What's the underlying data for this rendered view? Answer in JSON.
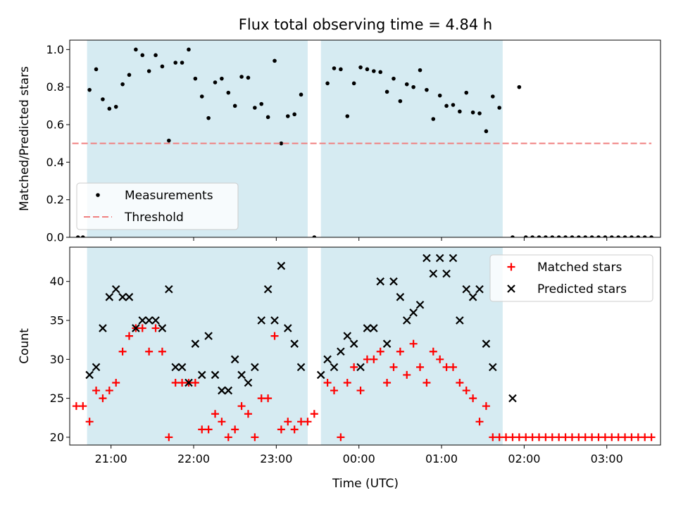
{
  "chart_data": {
    "title": "Flux total observing time = 4.84 h",
    "xlabel": "Time (UTC)",
    "x_unit": "hours UTC on a continuous time axis (values of 24 or more are after midnight)",
    "xlim": [
      20.5,
      27.65
    ],
    "x_ticks": [
      {
        "value": 21,
        "label": "21:00"
      },
      {
        "value": 22,
        "label": "22:00"
      },
      {
        "value": 23,
        "label": "23:00"
      },
      {
        "value": 24,
        "label": "00:00"
      },
      {
        "value": 25,
        "label": "01:00"
      },
      {
        "value": 26,
        "label": "02:00"
      },
      {
        "value": 27,
        "label": "03:00"
      }
    ],
    "colors": {
      "measurements": "#000000",
      "threshold": "#f08080",
      "matched": "#ff0000",
      "predicted": "#000000",
      "shade": "#add8e6"
    },
    "shaded_intervals": [
      [
        20.71,
        23.38
      ],
      [
        23.54,
        25.74
      ]
    ],
    "panels": [
      {
        "type": "scatter",
        "ylabel": "Matched/Predicted stars",
        "ylim": [
          0,
          1.05
        ],
        "y_ticks": [
          "0.0",
          "0.2",
          "0.4",
          "0.6",
          "0.8",
          "1.0"
        ],
        "grid": false,
        "legend_position": "bottom-left",
        "series": [
          {
            "name": "Measurements",
            "type": "scatter",
            "marker": "dot",
            "points": [
              [
                20.6,
                0
              ],
              [
                20.66,
                0
              ],
              [
                20.74,
                0.785
              ],
              [
                20.82,
                0.895
              ],
              [
                20.9,
                0.735
              ],
              [
                20.98,
                0.685
              ],
              [
                21.06,
                0.695
              ],
              [
                21.14,
                0.815
              ],
              [
                21.22,
                0.865
              ],
              [
                21.3,
                1.0
              ],
              [
                21.38,
                0.97
              ],
              [
                21.46,
                0.885
              ],
              [
                21.54,
                0.97
              ],
              [
                21.62,
                0.91
              ],
              [
                21.7,
                0.515
              ],
              [
                21.78,
                0.93
              ],
              [
                21.86,
                0.93
              ],
              [
                21.94,
                1.0
              ],
              [
                22.02,
                0.845
              ],
              [
                22.1,
                0.75
              ],
              [
                22.18,
                0.635
              ],
              [
                22.26,
                0.825
              ],
              [
                22.34,
                0.845
              ],
              [
                22.42,
                0.77
              ],
              [
                22.5,
                0.7
              ],
              [
                22.58,
                0.855
              ],
              [
                22.66,
                0.85
              ],
              [
                22.74,
                0.69
              ],
              [
                22.82,
                0.71
              ],
              [
                22.9,
                0.64
              ],
              [
                22.98,
                0.94
              ],
              [
                23.06,
                0.5
              ],
              [
                23.14,
                0.645
              ],
              [
                23.22,
                0.655
              ],
              [
                23.3,
                0.76
              ],
              [
                23.46,
                0
              ],
              [
                23.62,
                0.82
              ],
              [
                23.7,
                0.9
              ],
              [
                23.78,
                0.895
              ],
              [
                23.86,
                0.645
              ],
              [
                23.94,
                0.82
              ],
              [
                24.02,
                0.905
              ],
              [
                24.1,
                0.895
              ],
              [
                24.18,
                0.885
              ],
              [
                24.26,
                0.88
              ],
              [
                24.34,
                0.775
              ],
              [
                24.42,
                0.845
              ],
              [
                24.5,
                0.725
              ],
              [
                24.58,
                0.815
              ],
              [
                24.66,
                0.8
              ],
              [
                24.74,
                0.89
              ],
              [
                24.82,
                0.785
              ],
              [
                24.9,
                0.63
              ],
              [
                24.98,
                0.755
              ],
              [
                25.06,
                0.7
              ],
              [
                25.14,
                0.705
              ],
              [
                25.22,
                0.67
              ],
              [
                25.3,
                0.77
              ],
              [
                25.38,
                0.665
              ],
              [
                25.46,
                0.66
              ],
              [
                25.54,
                0.565
              ],
              [
                25.62,
                0.75
              ],
              [
                25.7,
                0.69
              ],
              [
                25.86,
                0
              ],
              [
                25.94,
                0.8
              ],
              [
                26.02,
                0
              ],
              [
                26.1,
                0
              ],
              [
                26.18,
                0
              ],
              [
                26.26,
                0
              ],
              [
                26.34,
                0
              ],
              [
                26.42,
                0
              ],
              [
                26.5,
                0
              ],
              [
                26.58,
                0
              ],
              [
                26.66,
                0
              ],
              [
                26.74,
                0
              ],
              [
                26.82,
                0
              ],
              [
                26.9,
                0
              ],
              [
                26.98,
                0
              ],
              [
                27.06,
                0
              ],
              [
                27.14,
                0
              ],
              [
                27.22,
                0
              ],
              [
                27.3,
                0
              ],
              [
                27.38,
                0
              ],
              [
                27.46,
                0
              ],
              [
                27.54,
                0
              ]
            ]
          },
          {
            "name": "Threshold",
            "type": "line",
            "style": "dashed",
            "x_range": [
              20.42,
              27.54
            ],
            "y": 0.5
          }
        ]
      },
      {
        "type": "scatter",
        "ylabel": "Count",
        "ylim": [
          19,
          44.4
        ],
        "y_ticks": [
          "20",
          "25",
          "30",
          "35",
          "40"
        ],
        "grid": false,
        "legend_position": "top-right",
        "series": [
          {
            "name": "Matched stars",
            "marker": "plus",
            "points": [
              [
                20.58,
                24
              ],
              [
                20.66,
                24
              ],
              [
                20.74,
                22
              ],
              [
                20.82,
                26
              ],
              [
                20.9,
                25
              ],
              [
                20.98,
                26
              ],
              [
                21.06,
                27
              ],
              [
                21.14,
                31
              ],
              [
                21.22,
                33
              ],
              [
                21.3,
                34
              ],
              [
                21.38,
                34
              ],
              [
                21.46,
                31
              ],
              [
                21.54,
                34
              ],
              [
                21.62,
                31
              ],
              [
                21.7,
                20
              ],
              [
                21.78,
                27
              ],
              [
                21.86,
                27
              ],
              [
                21.94,
                27
              ],
              [
                22.02,
                27
              ],
              [
                22.1,
                21
              ],
              [
                22.18,
                21
              ],
              [
                22.26,
                23
              ],
              [
                22.34,
                22
              ],
              [
                22.42,
                20
              ],
              [
                22.5,
                21
              ],
              [
                22.58,
                24
              ],
              [
                22.66,
                23
              ],
              [
                22.74,
                20
              ],
              [
                22.82,
                25
              ],
              [
                22.9,
                25
              ],
              [
                22.98,
                33
              ],
              [
                23.06,
                21
              ],
              [
                23.14,
                22
              ],
              [
                23.22,
                21
              ],
              [
                23.3,
                22
              ],
              [
                23.38,
                22
              ],
              [
                23.46,
                23
              ],
              [
                23.62,
                27
              ],
              [
                23.7,
                26
              ],
              [
                23.78,
                20
              ],
              [
                23.86,
                27
              ],
              [
                23.94,
                29
              ],
              [
                24.02,
                26
              ],
              [
                24.1,
                30
              ],
              [
                24.18,
                30
              ],
              [
                24.26,
                31
              ],
              [
                24.34,
                27
              ],
              [
                24.42,
                29
              ],
              [
                24.5,
                31
              ],
              [
                24.58,
                28
              ],
              [
                24.66,
                32
              ],
              [
                24.74,
                29
              ],
              [
                24.82,
                27
              ],
              [
                24.9,
                31
              ],
              [
                24.98,
                30
              ],
              [
                25.06,
                29
              ],
              [
                25.14,
                29
              ],
              [
                25.22,
                27
              ],
              [
                25.3,
                26
              ],
              [
                25.38,
                25
              ],
              [
                25.46,
                22
              ],
              [
                25.54,
                24
              ],
              [
                25.62,
                20
              ],
              [
                25.7,
                20
              ],
              [
                25.78,
                20
              ],
              [
                25.86,
                20
              ],
              [
                25.94,
                20
              ],
              [
                26.02,
                20
              ],
              [
                26.1,
                20
              ],
              [
                26.18,
                20
              ],
              [
                26.26,
                20
              ],
              [
                26.34,
                20
              ],
              [
                26.42,
                20
              ],
              [
                26.5,
                20
              ],
              [
                26.58,
                20
              ],
              [
                26.66,
                20
              ],
              [
                26.74,
                20
              ],
              [
                26.82,
                20
              ],
              [
                26.9,
                20
              ],
              [
                26.98,
                20
              ],
              [
                27.06,
                20
              ],
              [
                27.14,
                20
              ],
              [
                27.22,
                20
              ],
              [
                27.3,
                20
              ],
              [
                27.38,
                20
              ],
              [
                27.46,
                20
              ],
              [
                27.54,
                20
              ]
            ]
          },
          {
            "name": "Predicted stars",
            "marker": "x",
            "points": [
              [
                20.74,
                28
              ],
              [
                20.82,
                29
              ],
              [
                20.9,
                34
              ],
              [
                20.98,
                38
              ],
              [
                21.06,
                39
              ],
              [
                21.14,
                38
              ],
              [
                21.22,
                38
              ],
              [
                21.3,
                34
              ],
              [
                21.38,
                35
              ],
              [
                21.46,
                35
              ],
              [
                21.54,
                35
              ],
              [
                21.62,
                34
              ],
              [
                21.7,
                39
              ],
              [
                21.78,
                29
              ],
              [
                21.86,
                29
              ],
              [
                21.94,
                27
              ],
              [
                22.02,
                32
              ],
              [
                22.1,
                28
              ],
              [
                22.18,
                33
              ],
              [
                22.26,
                28
              ],
              [
                22.34,
                26
              ],
              [
                22.42,
                26
              ],
              [
                22.5,
                30
              ],
              [
                22.58,
                28
              ],
              [
                22.66,
                27
              ],
              [
                22.74,
                29
              ],
              [
                22.82,
                35
              ],
              [
                22.9,
                39
              ],
              [
                22.98,
                35
              ],
              [
                23.06,
                42
              ],
              [
                23.14,
                34
              ],
              [
                23.22,
                32
              ],
              [
                23.3,
                29
              ],
              [
                23.54,
                28
              ],
              [
                23.62,
                30
              ],
              [
                23.7,
                29
              ],
              [
                23.78,
                31
              ],
              [
                23.86,
                33
              ],
              [
                23.94,
                32
              ],
              [
                24.02,
                29
              ],
              [
                24.1,
                34
              ],
              [
                24.18,
                34
              ],
              [
                24.26,
                40
              ],
              [
                24.34,
                32
              ],
              [
                24.42,
                40
              ],
              [
                24.5,
                38
              ],
              [
                24.58,
                35
              ],
              [
                24.66,
                36
              ],
              [
                24.74,
                37
              ],
              [
                24.82,
                43
              ],
              [
                24.9,
                41
              ],
              [
                24.98,
                43
              ],
              [
                25.06,
                41
              ],
              [
                25.14,
                43
              ],
              [
                25.22,
                35
              ],
              [
                25.3,
                39
              ],
              [
                25.38,
                38
              ],
              [
                25.46,
                39
              ],
              [
                25.54,
                32
              ],
              [
                25.62,
                29
              ],
              [
                25.86,
                25
              ]
            ]
          }
        ]
      }
    ]
  }
}
